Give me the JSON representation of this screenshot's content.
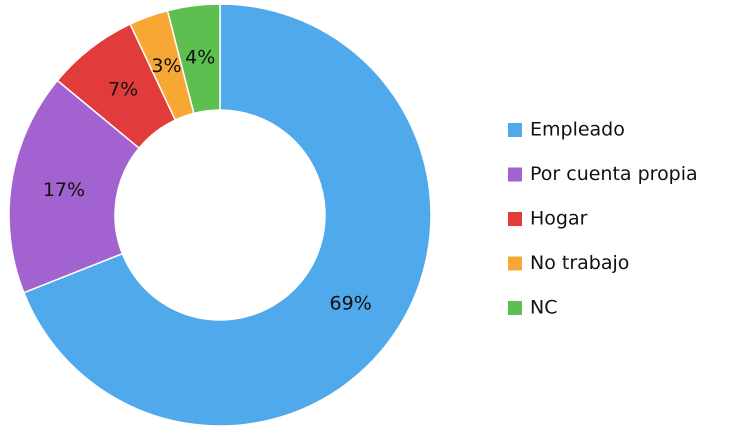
{
  "chart_data": {
    "type": "donut",
    "categories": [
      "Empleado",
      "Por cuenta propia",
      "Hogar",
      "No trabajo",
      "NC"
    ],
    "values": [
      69,
      17,
      7,
      3,
      4
    ],
    "value_labels": [
      "69%",
      "17%",
      "7%",
      "3%",
      "4%"
    ],
    "colors": [
      "#4fa9ea",
      "#a262cf",
      "#e23b3b",
      "#f7a834",
      "#5cbf4f"
    ],
    "legend": "right"
  }
}
